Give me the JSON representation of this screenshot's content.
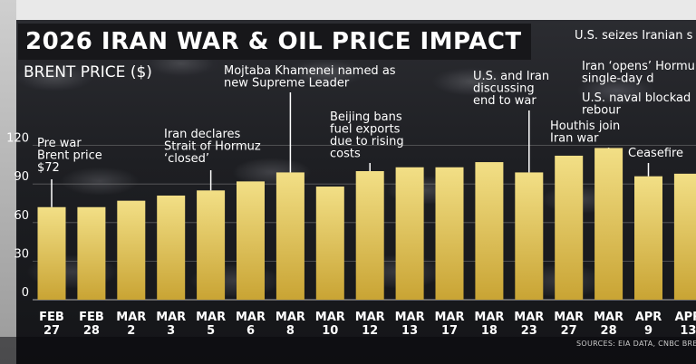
{
  "header": {
    "title": "2026 IRAN WAR & OIL PRICE IMPACT",
    "ticker": "U.S. seizes Iranian s",
    "source": "SOURCES:  EIA DATA, CNBC BREN"
  },
  "colors": {
    "bar_top": "#f2df86",
    "bar_bottom": "#c9a434",
    "grid": "#8a8a8a",
    "title_bg": "#17171a"
  },
  "chart_data": {
    "type": "bar",
    "ylabel": "BRENT PRICE ($)",
    "ylim": [
      0,
      120
    ],
    "yticks": [
      "0",
      "30",
      "60",
      "90",
      "120"
    ],
    "grid": true,
    "categories": [
      [
        "FEB",
        "27"
      ],
      [
        "FEB",
        "28"
      ],
      [
        "MAR",
        "2"
      ],
      [
        "MAR",
        "3"
      ],
      [
        "MAR",
        "5"
      ],
      [
        "MAR",
        "6"
      ],
      [
        "MAR",
        "8"
      ],
      [
        "MAR",
        "10"
      ],
      [
        "MAR",
        "12"
      ],
      [
        "MAR",
        "13"
      ],
      [
        "MAR",
        "17"
      ],
      [
        "MAR",
        "18"
      ],
      [
        "MAR",
        "23"
      ],
      [
        "MAR",
        "27"
      ],
      [
        "MAR",
        "28"
      ],
      [
        "APR",
        "9"
      ],
      [
        "APR",
        "13"
      ]
    ],
    "values": [
      72,
      72,
      77,
      81,
      85,
      92,
      99,
      88,
      100,
      103,
      103,
      107,
      99,
      112,
      118,
      96,
      98
    ],
    "annotations": [
      {
        "index": 0,
        "lines": [
          "Pre war",
          "Brent price",
          "$72"
        ]
      },
      {
        "index": 4,
        "lines": [
          "Iran declares",
          "Strait of Hormuz",
          "‘closed’"
        ]
      },
      {
        "index": 6,
        "lines": [
          "Mojtaba Khamenei named as",
          "new Supreme Leader"
        ]
      },
      {
        "index": 8,
        "lines": [
          "Beijing bans",
          "fuel exports",
          "due to rising",
          "costs"
        ]
      },
      {
        "index": 12,
        "lines": [
          "U.S. and Iran",
          "discussing",
          "end to war"
        ]
      },
      {
        "index": 14,
        "lines": [
          "Houthis join",
          "Iran war"
        ]
      },
      {
        "index": 15,
        "lines": [
          "Ceasefire"
        ]
      },
      {
        "index": 16,
        "lines": [
          "Iran ‘opens’ Hormu",
          "single-day d"
        ]
      },
      {
        "index": 16,
        "lines": [
          "U.S. naval blockad",
          "rebour"
        ]
      }
    ]
  }
}
